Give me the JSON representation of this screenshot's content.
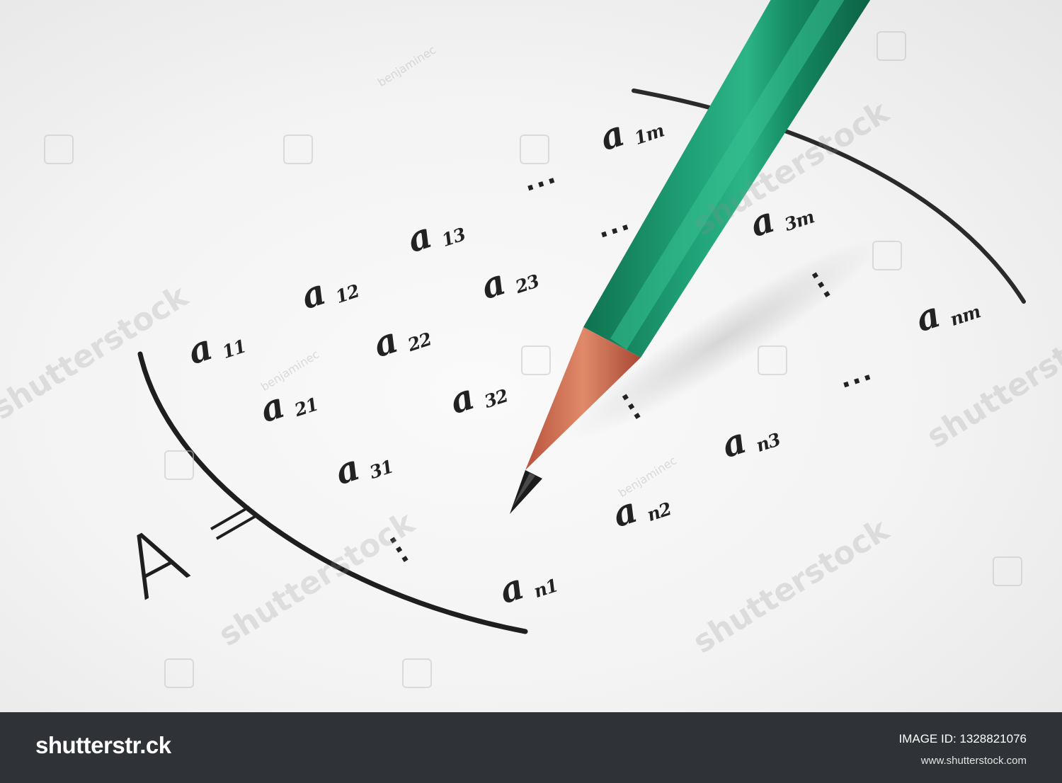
{
  "scene": {
    "matrix_name": "A",
    "equals_sign": "=",
    "base_symbol": "a",
    "entries": [
      {
        "sub": "11"
      },
      {
        "sub": "12"
      },
      {
        "sub": "13"
      },
      {
        "sub": "1m"
      },
      {
        "sub": "21"
      },
      {
        "sub": "22"
      },
      {
        "sub": "23"
      },
      {
        "sub": "31"
      },
      {
        "sub": "32"
      },
      {
        "sub": "3m"
      },
      {
        "sub": "n1"
      },
      {
        "sub": "n2"
      },
      {
        "sub": "n3"
      },
      {
        "sub": "nm"
      }
    ],
    "ellipsis": "...",
    "vertical_ellipsis": "⋮",
    "pencil_color": "#1f9a6e",
    "wood_color": "#d9795c",
    "ink_color": "#222222"
  },
  "watermarks": {
    "brand": "shutterstock",
    "author": "benjaminec"
  },
  "footer": {
    "logo": "shutterstr.ck",
    "image_id_label": "IMAGE ID: 1328821076",
    "url": "www.shutterstock.com"
  }
}
